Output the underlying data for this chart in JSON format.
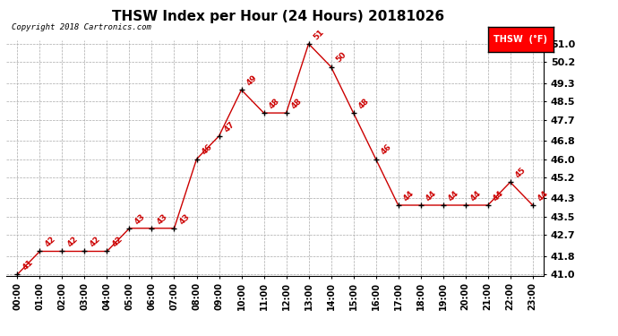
{
  "title": "THSW Index per Hour (24 Hours) 20181026",
  "copyright": "Copyright 2018 Cartronics.com",
  "legend_label": "THSW  (°F)",
  "hours": [
    0,
    1,
    2,
    3,
    4,
    5,
    6,
    7,
    8,
    9,
    10,
    11,
    12,
    13,
    14,
    15,
    16,
    17,
    18,
    19,
    20,
    21,
    22,
    23
  ],
  "values": [
    41,
    42,
    42,
    42,
    42,
    43,
    43,
    43,
    46,
    47,
    49,
    48,
    48,
    51,
    50,
    48,
    46,
    44,
    44,
    44,
    44,
    44,
    45,
    44
  ],
  "xlabels": [
    "00:00",
    "01:00",
    "02:00",
    "03:00",
    "04:00",
    "05:00",
    "06:00",
    "07:00",
    "08:00",
    "09:00",
    "10:00",
    "11:00",
    "12:00",
    "13:00",
    "14:00",
    "15:00",
    "16:00",
    "17:00",
    "18:00",
    "19:00",
    "20:00",
    "21:00",
    "22:00",
    "23:00"
  ],
  "yticks": [
    41.0,
    41.8,
    42.7,
    43.5,
    44.3,
    45.2,
    46.0,
    46.8,
    47.7,
    48.5,
    49.3,
    50.2,
    51.0
  ],
  "ylim": [
    40.95,
    51.15
  ],
  "xlim": [
    -0.5,
    23.5
  ],
  "line_color": "#cc0000",
  "marker_color": "black",
  "label_color": "#cc0000",
  "grid_color": "#aaaaaa",
  "background_color": "white",
  "title_fontsize": 11,
  "label_fontsize": 6.5,
  "tick_fontsize": 7,
  "copyright_fontsize": 6.5,
  "ytick_fontsize": 8
}
